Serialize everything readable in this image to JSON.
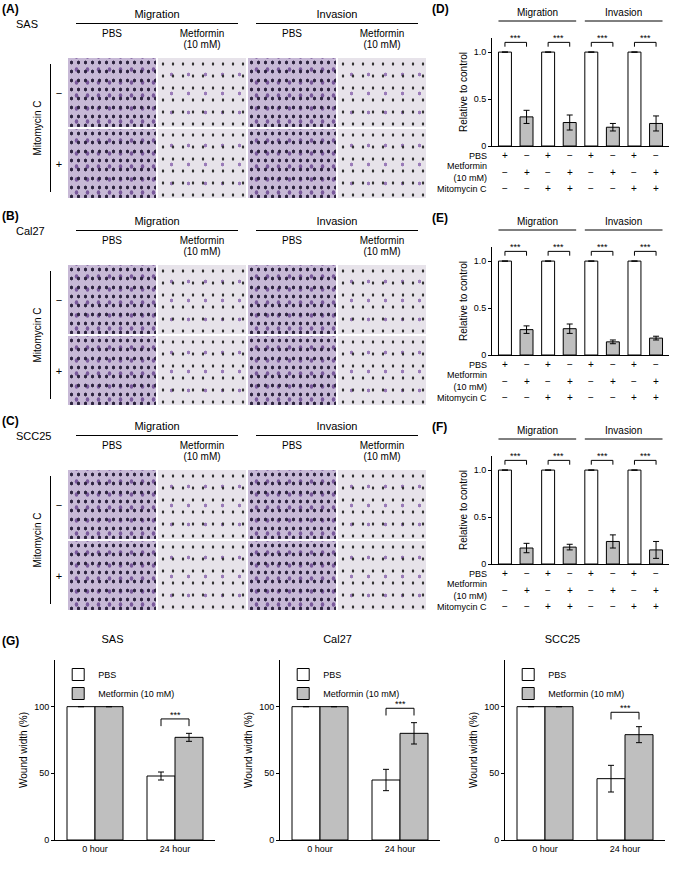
{
  "panels": [
    {
      "label": "(A)",
      "cell_line": "SAS",
      "column_groups": [
        "Migration",
        "Invasion"
      ],
      "columns": [
        "PBS",
        "Metformin\n(10 mM)"
      ],
      "row_title": "Mitomycin C",
      "rows": [
        "−",
        "+"
      ]
    },
    {
      "label": "(B)",
      "cell_line": "Cal27",
      "column_groups": [
        "Migration",
        "Invasion"
      ],
      "columns": [
        "PBS",
        "Metformin\n(10 mM)"
      ],
      "row_title": "Mitomycin C",
      "rows": [
        "−",
        "+"
      ]
    },
    {
      "label": "(C)",
      "cell_line": "SCC25",
      "column_groups": [
        "Migration",
        "Invasion"
      ],
      "columns": [
        "PBS",
        "Metformin\n(10 mM)"
      ],
      "row_title": "Mitomycin C",
      "rows": [
        "−",
        "+"
      ]
    }
  ],
  "chart_data": [
    {
      "type": "bar",
      "panel_label": "(D)",
      "categories": [
        null,
        null,
        null,
        null,
        null,
        null,
        null,
        null
      ],
      "values": [
        1,
        0.31,
        1,
        0.25,
        1,
        0.2,
        1,
        0.24
      ],
      "errors": [
        null,
        0.07,
        null,
        0.08,
        null,
        0.04,
        null,
        0.08
      ],
      "colors": [
        "#ffffff",
        "#bfbfbf",
        "#ffffff",
        "#bfbfbf",
        "#ffffff",
        "#bfbfbf",
        "#ffffff",
        "#bfbfbf"
      ],
      "y_label": "Relative to control",
      "ylim": [
        0,
        1.15
      ],
      "yticks": [
        0,
        0.5,
        {
          "value": 1,
          "label": "1.0"
        }
      ],
      "grid": false,
      "group_labels": [
        "Migration",
        "Invasion"
      ],
      "significance_labels": [
        "***",
        "***",
        "***",
        "***"
      ],
      "condition_rows": [
        {
          "label": "PBS",
          "marks": [
            "+",
            "−",
            "+",
            "−",
            "+",
            "−",
            "+",
            "−"
          ]
        },
        {
          "label": "Metformin\n(10 mM)",
          "marks": [
            "−",
            "+",
            "−",
            "+",
            "−",
            "+",
            "−",
            "+"
          ]
        },
        {
          "label": "Mitomycin C",
          "marks": [
            "−",
            "−",
            "+",
            "+",
            "−",
            "−",
            "+",
            "+"
          ]
        }
      ]
    },
    {
      "type": "bar",
      "panel_label": "(E)",
      "categories": [
        null,
        null,
        null,
        null,
        null,
        null,
        null,
        null
      ],
      "values": [
        1,
        0.27,
        1,
        0.28,
        1,
        0.14,
        1,
        0.18
      ],
      "errors": [
        null,
        0.04,
        null,
        0.05,
        null,
        0.02,
        null,
        0.02
      ],
      "colors": [
        "#ffffff",
        "#bfbfbf",
        "#ffffff",
        "#bfbfbf",
        "#ffffff",
        "#bfbfbf",
        "#ffffff",
        "#bfbfbf"
      ],
      "y_label": "Relative to control",
      "ylim": [
        0,
        1.15
      ],
      "yticks": [
        0,
        0.5,
        {
          "value": 1,
          "label": "1.0"
        }
      ],
      "grid": false,
      "group_labels": [
        "Migration",
        "Invasion"
      ],
      "significance_labels": [
        "***",
        "***",
        "***",
        "***"
      ],
      "condition_rows": [
        {
          "label": "PBS",
          "marks": [
            "+",
            "−",
            "+",
            "−",
            "+",
            "−",
            "+",
            "−"
          ]
        },
        {
          "label": "Metformin\n(10 mM)",
          "marks": [
            "−",
            "+",
            "−",
            "+",
            "−",
            "+",
            "−",
            "+"
          ]
        },
        {
          "label": "Mitomycin C",
          "marks": [
            "−",
            "−",
            "+",
            "+",
            "−",
            "−",
            "+",
            "+"
          ]
        }
      ]
    },
    {
      "type": "bar",
      "panel_label": "(F)",
      "categories": [
        null,
        null,
        null,
        null,
        null,
        null,
        null,
        null
      ],
      "values": [
        1,
        0.17,
        1,
        0.18,
        1,
        0.24,
        1,
        0.15
      ],
      "errors": [
        null,
        0.05,
        null,
        0.03,
        null,
        0.07,
        null,
        0.09
      ],
      "colors": [
        "#ffffff",
        "#bfbfbf",
        "#ffffff",
        "#bfbfbf",
        "#ffffff",
        "#bfbfbf",
        "#ffffff",
        "#bfbfbf"
      ],
      "y_label": "Relative to control",
      "ylim": [
        0,
        1.15
      ],
      "yticks": [
        0,
        0.5,
        {
          "value": 1,
          "label": "1.0"
        }
      ],
      "grid": false,
      "group_labels": [
        "Migration",
        "Invasion"
      ],
      "significance_labels": [
        "***",
        "***",
        "***",
        "***"
      ],
      "condition_rows": [
        {
          "label": "PBS",
          "marks": [
            "+",
            "−",
            "+",
            "−",
            "+",
            "−",
            "+",
            "−"
          ]
        },
        {
          "label": "Metformin\n(10 mM)",
          "marks": [
            "−",
            "+",
            "−",
            "+",
            "−",
            "+",
            "−",
            "+"
          ]
        },
        {
          "label": "Mitomycin C",
          "marks": [
            "−",
            "−",
            "+",
            "+",
            "−",
            "−",
            "+",
            "+"
          ]
        }
      ]
    },
    {
      "type": "bar",
      "panel_label": "(G)",
      "title": "SAS",
      "categories": [
        "0 hour",
        "24 hour"
      ],
      "series": [
        {
          "name": "PBS",
          "color": "#ffffff",
          "values": [
            100,
            48
          ],
          "errors": [
            null,
            3
          ]
        },
        {
          "name": "Metformin (10 mM)",
          "color": "#bfbfbf",
          "values": [
            100,
            77
          ],
          "errors": [
            null,
            3
          ]
        }
      ],
      "y_label": "Wound width (%)",
      "ylim": [
        0,
        135
      ],
      "yticks": [
        0,
        50,
        100
      ],
      "grid": false,
      "legend": "upper left",
      "significance_labels": [
        null,
        "***"
      ]
    },
    {
      "type": "bar",
      "title": "Cal27",
      "categories": [
        "0 hour",
        "24 hour"
      ],
      "series": [
        {
          "name": "PBS",
          "color": "#ffffff",
          "values": [
            100,
            45
          ],
          "errors": [
            null,
            8
          ]
        },
        {
          "name": "Metformin (10 mM)",
          "color": "#bfbfbf",
          "values": [
            100,
            80
          ],
          "errors": [
            null,
            8
          ]
        }
      ],
      "y_label": "Wound width (%)",
      "ylim": [
        0,
        135
      ],
      "yticks": [
        0,
        50,
        100
      ],
      "grid": false,
      "legend": "upper left",
      "significance_labels": [
        null,
        "***"
      ]
    },
    {
      "type": "bar",
      "title": "SCC25",
      "categories": [
        "0 hour",
        "24 hour"
      ],
      "series": [
        {
          "name": "PBS",
          "color": "#ffffff",
          "values": [
            100,
            46
          ],
          "errors": [
            null,
            10
          ]
        },
        {
          "name": "Metformin (10 mM)",
          "color": "#bfbfbf",
          "values": [
            100,
            79
          ],
          "errors": [
            null,
            6
          ]
        }
      ],
      "y_label": "Wound width (%)",
      "ylim": [
        0,
        135
      ],
      "yticks": [
        0,
        50,
        100
      ],
      "grid": false,
      "legend": "upper left",
      "significance_labels": [
        null,
        "***"
      ]
    }
  ]
}
